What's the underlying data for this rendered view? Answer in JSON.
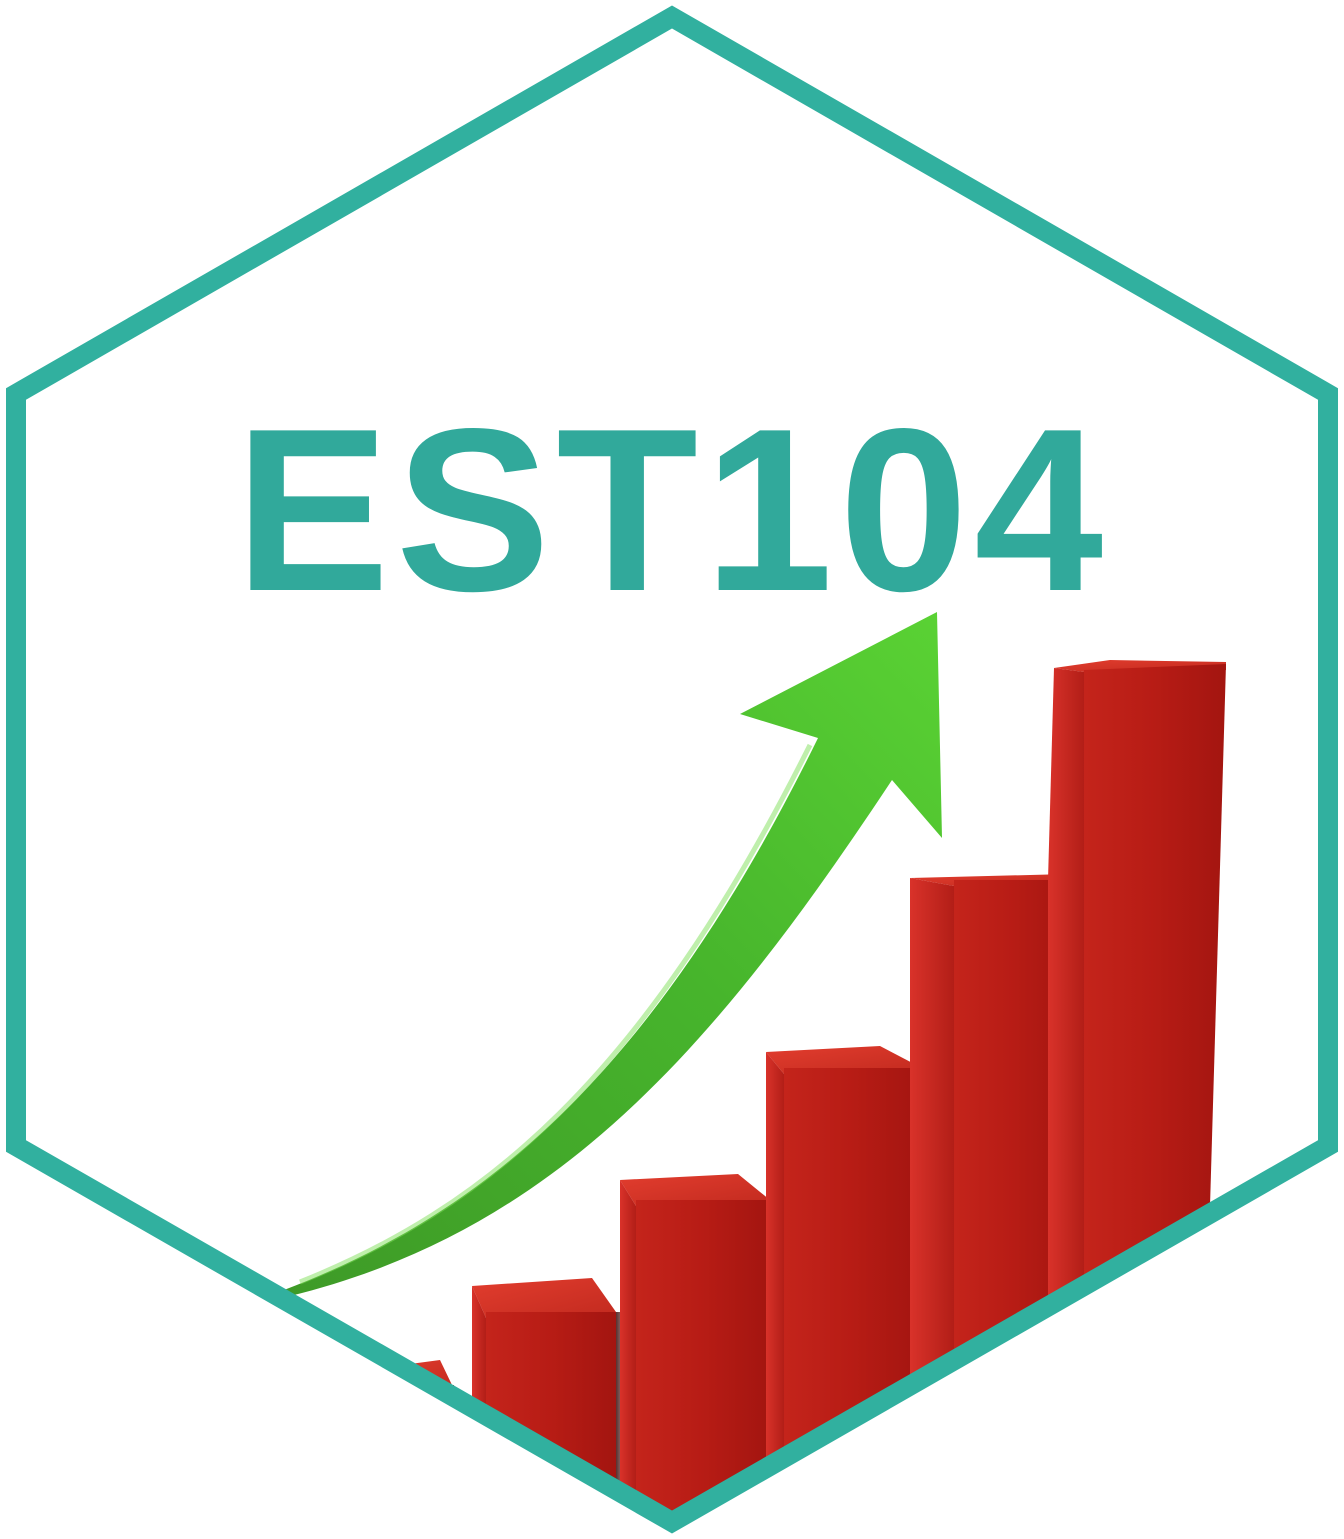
{
  "logo": {
    "title": "EST104",
    "border_color": "#31b09f",
    "title_color": "#31a99b",
    "arrow_color": "#4cc42f",
    "bar_color": "#b21c15",
    "background_color": "#ffffff"
  }
}
